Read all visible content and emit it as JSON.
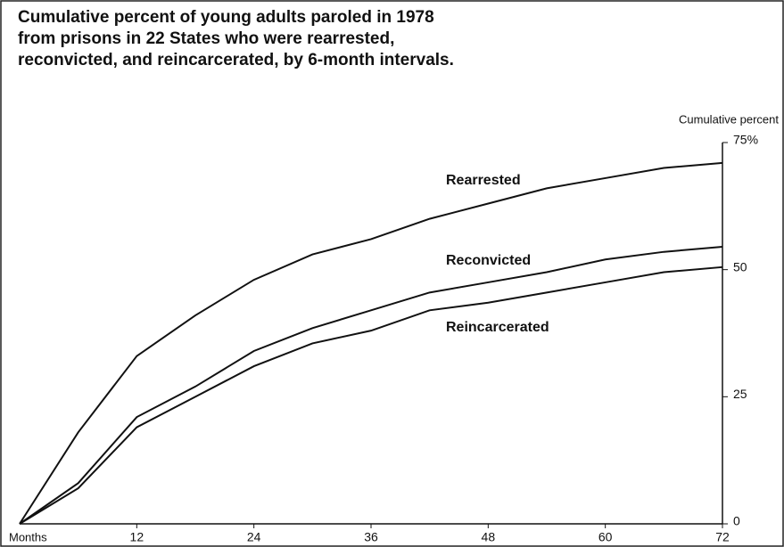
{
  "chart_data": {
    "type": "line",
    "title": [
      "Cumulative percent of young adults paroled in 1978",
      "from prisons in 22 States who were rearrested,",
      "reconvicted, and reincarcerated, by 6-month intervals."
    ],
    "xlabel": "Months",
    "ylabel": "Cumulative percent",
    "x": [
      0,
      6,
      12,
      18,
      24,
      30,
      36,
      42,
      48,
      54,
      60,
      66,
      72
    ],
    "series": [
      {
        "name": "Rearrested",
        "color": "#111111",
        "values": [
          0,
          18,
          33,
          41,
          48,
          53,
          56,
          60,
          63,
          66,
          68,
          70,
          71
        ]
      },
      {
        "name": "Reconvicted",
        "color": "#111111",
        "values": [
          0,
          8,
          21,
          27,
          34,
          38.5,
          42,
          45.5,
          47.5,
          49.5,
          52,
          53.5,
          54.5
        ]
      },
      {
        "name": "Reincarcerated",
        "color": "#111111",
        "values": [
          0,
          7,
          19,
          25,
          31,
          35.5,
          38,
          42,
          43.5,
          45.5,
          47.5,
          49.5,
          50.5
        ]
      }
    ],
    "xlim": [
      0,
      72
    ],
    "xticks": [
      12,
      24,
      36,
      48,
      60,
      72
    ],
    "ylim": [
      0,
      75
    ],
    "yticks": [
      0,
      25,
      50,
      {
        "value": 75,
        "label": "75%"
      }
    ]
  }
}
